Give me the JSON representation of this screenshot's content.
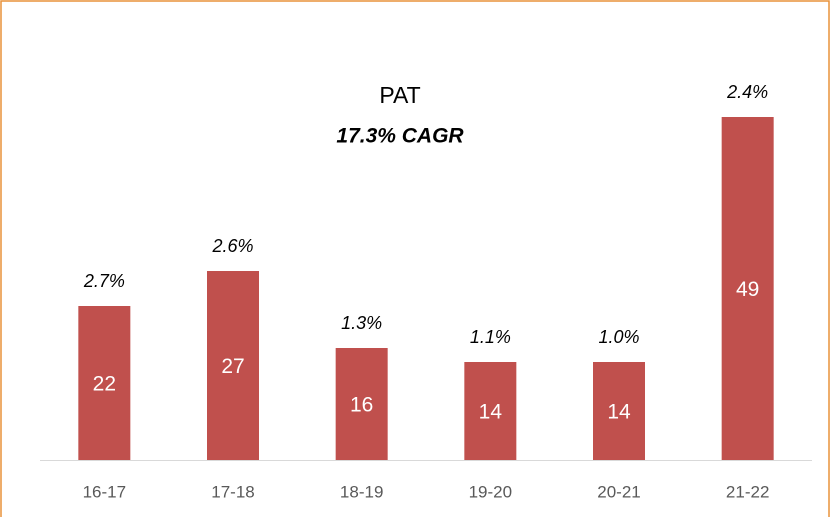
{
  "chart_data": {
    "type": "bar",
    "title": "PAT",
    "subtitle": "17.3% CAGR",
    "categories": [
      "16-17",
      "17-18",
      "18-19",
      "19-20",
      "20-21",
      "21-22"
    ],
    "values": [
      22,
      27,
      16,
      14,
      14,
      49
    ],
    "annotations": [
      "2.7%",
      "2.6%",
      "1.3%",
      "1.1%",
      "1.0%",
      "2.4%"
    ],
    "color": "#c0504d"
  }
}
